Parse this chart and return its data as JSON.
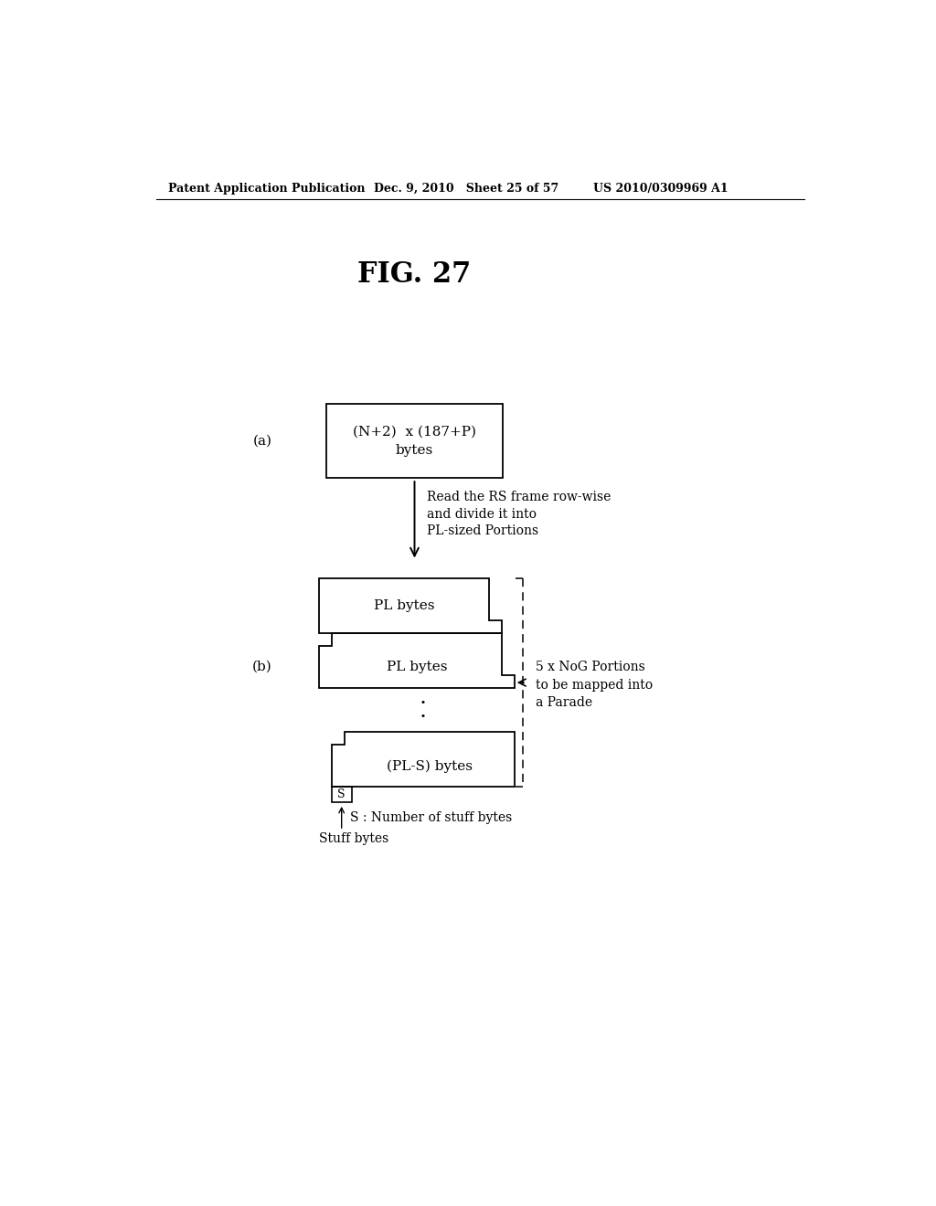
{
  "bg_color": "#ffffff",
  "header_left": "Patent Application Publication",
  "header_mid": "Dec. 9, 2010   Sheet 25 of 57",
  "header_right": "US 2010/0309969 A1",
  "fig_title": "FIG. 27",
  "label_a": "(a)",
  "label_b": "(b)",
  "box_a_text1": "(N+2)  x (187+P)",
  "box_a_text2": "bytes",
  "box_b1_text": "PL bytes",
  "box_b2_text": "PL bytes",
  "box_b3_text": "(PL-S) bytes",
  "box_s_text": "S",
  "arrow_text1": "Read the RS frame row-wise",
  "arrow_text2": "and divide it into",
  "arrow_text3": "PL-sized Portions",
  "brace_text1": "5 x NoG Portions",
  "brace_text2": "to be mapped into",
  "brace_text3": "a Parade",
  "stuff_label": "S : Number of stuff bytes",
  "stuff_label2": "Stuff bytes",
  "dots": ": .",
  "font_size_header": 9,
  "font_size_title": 22,
  "font_size_label": 11,
  "font_size_box": 11,
  "font_size_annotation": 10
}
